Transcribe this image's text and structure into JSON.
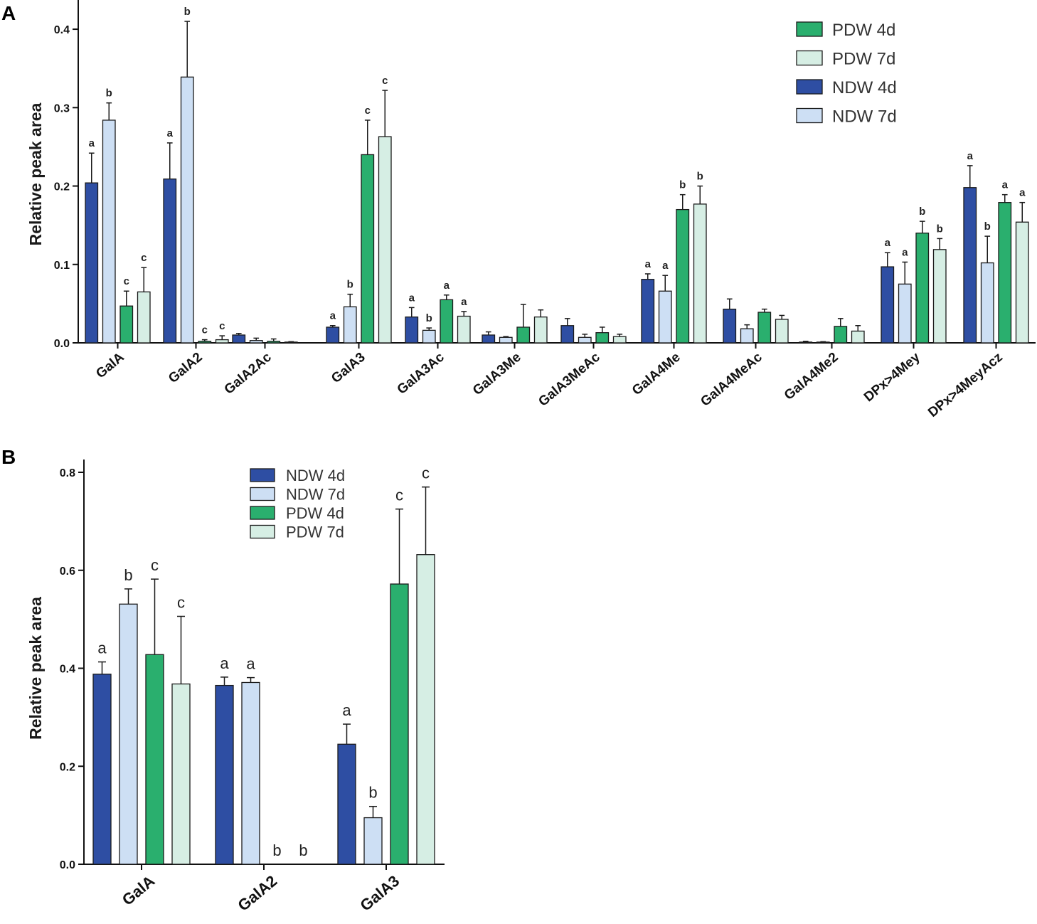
{
  "colors": {
    "ndw4d": "#2e4ea3",
    "ndw7d": "#cddff4",
    "pdw4d": "#2aaf6e",
    "pdw7d": "#d6eee4"
  },
  "chart_data": [
    {
      "panel": "A",
      "type": "bar",
      "ylabel": "Relative peak area",
      "ylim": [
        0,
        0.43
      ],
      "yticks": [
        "0.0",
        "0.1",
        "0.2",
        "0.3",
        "0.4"
      ],
      "ytick_values": [
        0,
        0.1,
        0.2,
        0.3,
        0.4
      ],
      "legend_position": "top-right",
      "legend": [
        "PDW 4d",
        "PDW 7d",
        "NDW 4d",
        "NDW 7d"
      ],
      "categories": [
        "GalA",
        "GalA2",
        "GalA2Ac",
        "GalA3",
        "GalA3Ac",
        "GalA3Me",
        "GalA3MeAc",
        "GalA4Me",
        "GalA4MeAc",
        "GalA4Me2",
        "DPx>4Mey",
        "DPx>4MeyAcz"
      ],
      "series": [
        {
          "name": "NDW 4d",
          "key": "ndw4d",
          "values": [
            0.204,
            0.209,
            0.01,
            0.02,
            0.033,
            0.01,
            0.022,
            0.081,
            0.043,
            0.001,
            0.097,
            0.198
          ],
          "errors": [
            0.038,
            0.046,
            0.002,
            0.002,
            0.012,
            0.004,
            0.009,
            0.007,
            0.013,
            0.001,
            0.018,
            0.028
          ],
          "labels": [
            "a",
            "a",
            "",
            "a",
            "a",
            "",
            "",
            "a",
            "",
            "",
            "a",
            "a"
          ]
        },
        {
          "name": "NDW 7d",
          "key": "ndw7d",
          "values": [
            0.284,
            0.339,
            0.003,
            0.046,
            0.016,
            0.007,
            0.007,
            0.066,
            0.018,
            0.001,
            0.075,
            0.102
          ],
          "errors": [
            0.022,
            0.071,
            0.003,
            0.016,
            0.003,
            0.001,
            0.004,
            0.02,
            0.005,
            0.0005,
            0.028,
            0.034
          ],
          "labels": [
            "b",
            "b",
            "",
            "b",
            "b",
            "",
            "",
            "a",
            "",
            "",
            "a",
            "b"
          ]
        },
        {
          "name": "PDW 4d",
          "key": "pdw4d",
          "values": [
            0.047,
            0.002,
            0.002,
            0.24,
            0.055,
            0.02,
            0.013,
            0.17,
            0.039,
            0.021,
            0.14,
            0.179
          ],
          "errors": [
            0.019,
            0.002,
            0.003,
            0.044,
            0.006,
            0.029,
            0.007,
            0.019,
            0.004,
            0.01,
            0.015,
            0.01
          ],
          "labels": [
            "c",
            "c",
            "",
            "c",
            "a",
            "",
            "",
            "b",
            "",
            "",
            "b",
            "a"
          ]
        },
        {
          "name": "PDW 7d",
          "key": "pdw7d",
          "values": [
            0.065,
            0.004,
            0.001,
            0.263,
            0.034,
            0.033,
            0.008,
            0.177,
            0.03,
            0.015,
            0.119,
            0.154
          ],
          "errors": [
            0.031,
            0.005,
            0.0005,
            0.059,
            0.006,
            0.009,
            0.003,
            0.023,
            0.005,
            0.007,
            0.014,
            0.025
          ],
          "labels": [
            "c",
            "c",
            "",
            "c",
            "a",
            "",
            "",
            "b",
            "",
            "",
            "b",
            "a"
          ]
        }
      ]
    },
    {
      "panel": "B",
      "type": "bar",
      "ylabel": "Relative peak area",
      "ylim": [
        0,
        0.8
      ],
      "yticks": [
        "0.0",
        "0.2",
        "0.4",
        "0.6",
        "0.8"
      ],
      "ytick_values": [
        0,
        0.2,
        0.4,
        0.6,
        0.8
      ],
      "legend_position": "top-center",
      "legend": [
        "NDW 4d",
        "NDW 7d",
        "PDW 4d",
        "PDW 7d"
      ],
      "categories": [
        "GalA",
        "GalA2",
        "GalA3"
      ],
      "series": [
        {
          "name": "NDW 4d",
          "key": "ndw4d",
          "values": [
            0.388,
            0.365,
            0.245
          ],
          "errors": [
            0.025,
            0.017,
            0.041
          ],
          "labels": [
            "a",
            "a",
            "a"
          ]
        },
        {
          "name": "NDW 7d",
          "key": "ndw7d",
          "values": [
            0.531,
            0.371,
            0.095
          ],
          "errors": [
            0.031,
            0.01,
            0.023
          ],
          "labels": [
            "b",
            "a",
            "b"
          ]
        },
        {
          "name": "PDW 4d",
          "key": "pdw4d",
          "values": [
            0.428,
            0.0,
            0.572
          ],
          "errors": [
            0.154,
            0.0,
            0.153
          ],
          "labels": [
            "c",
            "b",
            "c"
          ]
        },
        {
          "name": "PDW 7d",
          "key": "pdw7d",
          "values": [
            0.368,
            0.0,
            0.632
          ],
          "errors": [
            0.138,
            0.0,
            0.138
          ],
          "labels": [
            "c",
            "b",
            "c"
          ]
        }
      ]
    }
  ],
  "panels": {
    "a_letter": "A",
    "b_letter": "B"
  }
}
